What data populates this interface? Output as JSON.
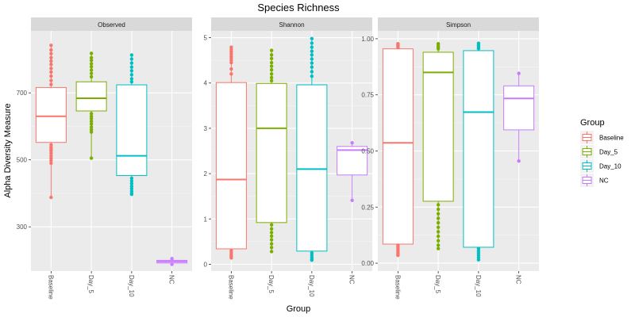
{
  "chart_data": {
    "type": "boxplot",
    "title": "Species Richness",
    "xlabel": "Group",
    "ylabel": "Alpha Diversity Measure",
    "categories": [
      "Baseline",
      "Day_5",
      "Day_10",
      "NC"
    ],
    "legend": {
      "title": "Group",
      "position": "right",
      "entries": [
        "Baseline",
        "Day_5",
        "Day_10",
        "NC"
      ]
    },
    "colors": {
      "Baseline": "#F8766D",
      "Day_5": "#7CAE00",
      "Day_10": "#00BFC4",
      "NC": "#C77CFF"
    },
    "grid": true,
    "panels": [
      {
        "name": "Observed",
        "ylim": [
          168,
          885
        ],
        "yticks": [
          300,
          500,
          700
        ],
        "boxes": [
          {
            "group": "Baseline",
            "lower": 388,
            "q1": 552,
            "median": 630,
            "q3": 716,
            "upper": 842,
            "outliers": [
              842,
              828,
              817,
              805,
              795,
              785,
              773,
              762,
              750,
              737,
              725,
              545,
              538,
              532,
              527,
              520,
              512,
              505,
              498,
              490,
              388
            ]
          },
          {
            "group": "Day_5",
            "lower": 505,
            "q1": 646,
            "median": 684,
            "q3": 733,
            "upper": 818,
            "outliers": [
              818,
              805,
              797,
              787,
              778,
              768,
              758,
              748,
              638,
              630,
              623,
              615,
              607,
              598,
              590,
              583,
              505
            ]
          },
          {
            "group": "Day_10",
            "lower": 397,
            "q1": 453,
            "median": 512,
            "q3": 724,
            "upper": 813,
            "outliers": [
              813,
              801,
              789,
              777,
              766,
              754,
              742,
              733,
              445,
              437,
              429,
              421,
              414,
              407,
              401,
              397
            ]
          },
          {
            "group": "NC",
            "lower": 188,
            "q1": 192,
            "median": 196,
            "q3": 200,
            "upper": 205,
            "outliers": [
              205,
              188
            ]
          }
        ]
      },
      {
        "name": "Shannon",
        "ylim": [
          -0.15,
          5.15
        ],
        "yticks": [
          0,
          1,
          2,
          3,
          4,
          5
        ],
        "boxes": [
          {
            "group": "Baseline",
            "lower": 0.14,
            "q1": 0.34,
            "median": 1.87,
            "q3": 4.01,
            "upper": 4.79,
            "outliers": [
              4.79,
              4.74,
              4.69,
              4.64,
              4.59,
              4.55,
              4.5,
              4.45,
              4.31,
              4.2,
              0.3,
              0.25,
              0.2,
              0.17,
              0.14
            ]
          },
          {
            "group": "Day_5",
            "lower": 0.28,
            "q1": 0.92,
            "median": 3.0,
            "q3": 3.99,
            "upper": 4.72,
            "outliers": [
              4.72,
              4.62,
              4.54,
              4.45,
              4.37,
              4.29,
              4.2,
              4.12,
              4.05,
              0.87,
              0.78,
              0.7,
              0.62,
              0.54,
              0.45,
              0.37,
              0.28
            ]
          },
          {
            "group": "Day_10",
            "lower": 0.09,
            "q1": 0.29,
            "median": 2.1,
            "q3": 3.96,
            "upper": 4.98,
            "outliers": [
              4.98,
              4.88,
              4.79,
              4.7,
              4.62,
              4.53,
              4.44,
              4.35,
              4.25,
              4.15,
              0.25,
              0.2,
              0.15,
              0.11,
              0.09
            ]
          },
          {
            "group": "NC",
            "lower": 1.41,
            "q1": 1.97,
            "median": 2.52,
            "q3": 2.6,
            "upper": 2.68,
            "outliers": [
              2.68,
              1.41
            ]
          }
        ]
      },
      {
        "name": "Simpson",
        "ylim": [
          -0.035,
          1.035
        ],
        "yticks": [
          0.0,
          0.25,
          0.5,
          0.75,
          1.0
        ],
        "boxes": [
          {
            "group": "Baseline",
            "lower": 0.035,
            "q1": 0.085,
            "median": 0.536,
            "q3": 0.955,
            "upper": 0.978,
            "outliers": [
              0.978,
              0.972,
              0.966,
              0.961,
              0.08,
              0.072,
              0.064,
              0.056,
              0.048,
              0.041,
              0.035
            ]
          },
          {
            "group": "Day_5",
            "lower": 0.065,
            "q1": 0.276,
            "median": 0.85,
            "q3": 0.94,
            "upper": 0.978,
            "outliers": [
              0.978,
              0.97,
              0.962,
              0.955,
              0.26,
              0.24,
              0.22,
              0.2,
              0.18,
              0.16,
              0.14,
              0.12,
              0.1,
              0.08,
              0.065
            ]
          },
          {
            "group": "Day_10",
            "lower": 0.015,
            "q1": 0.071,
            "median": 0.673,
            "q3": 0.947,
            "upper": 0.98,
            "outliers": [
              0.98,
              0.972,
              0.964,
              0.956,
              0.065,
              0.055,
              0.045,
              0.035,
              0.025,
              0.015
            ]
          },
          {
            "group": "NC",
            "lower": 0.455,
            "q1": 0.594,
            "median": 0.734,
            "q3": 0.79,
            "upper": 0.846,
            "outliers": [
              0.846,
              0.455
            ]
          }
        ]
      }
    ]
  }
}
